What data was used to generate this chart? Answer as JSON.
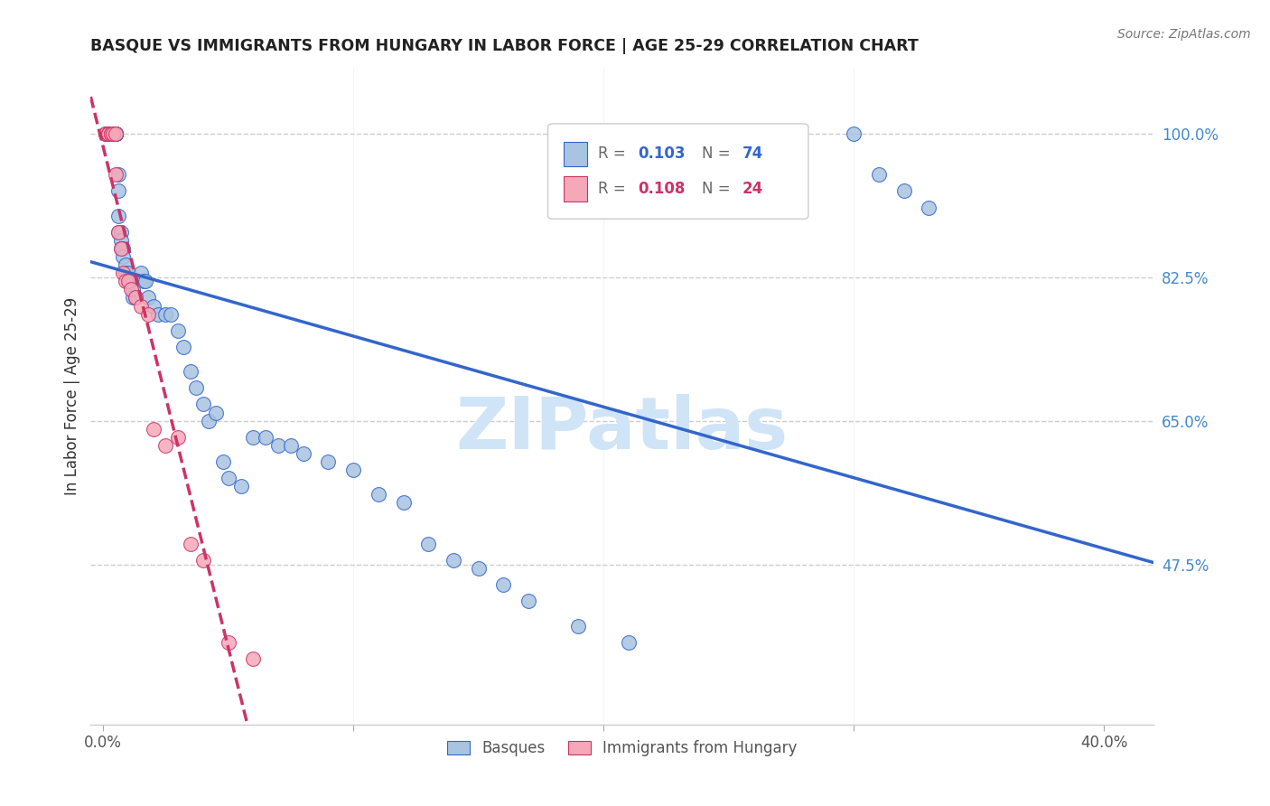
{
  "title": "BASQUE VS IMMIGRANTS FROM HUNGARY IN LABOR FORCE | AGE 25-29 CORRELATION CHART",
  "source": "Source: ZipAtlas.com",
  "ylabel": "In Labor Force | Age 25-29",
  "basque_color": "#a8c4e0",
  "hungary_color": "#f4a8b8",
  "trend_blue": "#3366cc",
  "trend_pink": "#cc3366",
  "axis_color": "#4488cc",
  "grid_color": "#cccccc",
  "background_color": "#ffffff",
  "watermark": "ZIPatlas",
  "watermark_color": "#d0e4f7",
  "basque_x": [
    0.001,
    0.001,
    0.002,
    0.002,
    0.002,
    0.003,
    0.003,
    0.003,
    0.003,
    0.004,
    0.004,
    0.004,
    0.004,
    0.005,
    0.005,
    0.005,
    0.005,
    0.005,
    0.006,
    0.006,
    0.006,
    0.006,
    0.007,
    0.007,
    0.007,
    0.008,
    0.008,
    0.009,
    0.009,
    0.01,
    0.01,
    0.011,
    0.011,
    0.012,
    0.012,
    0.013,
    0.015,
    0.016,
    0.017,
    0.018,
    0.02,
    0.022,
    0.025,
    0.027,
    0.03,
    0.032,
    0.035,
    0.037,
    0.04,
    0.042,
    0.045,
    0.048,
    0.05,
    0.055,
    0.06,
    0.065,
    0.07,
    0.075,
    0.08,
    0.09,
    0.1,
    0.11,
    0.12,
    0.13,
    0.14,
    0.15,
    0.16,
    0.17,
    0.19,
    0.21,
    0.3,
    0.31,
    0.32,
    0.33
  ],
  "basque_y": [
    1.0,
    1.0,
    1.0,
    1.0,
    1.0,
    1.0,
    1.0,
    1.0,
    1.0,
    1.0,
    1.0,
    1.0,
    1.0,
    1.0,
    1.0,
    1.0,
    1.0,
    1.0,
    0.95,
    0.93,
    0.9,
    0.88,
    0.88,
    0.87,
    0.86,
    0.86,
    0.85,
    0.84,
    0.83,
    0.83,
    0.82,
    0.82,
    0.82,
    0.81,
    0.8,
    0.8,
    0.83,
    0.82,
    0.82,
    0.8,
    0.79,
    0.78,
    0.78,
    0.78,
    0.76,
    0.74,
    0.71,
    0.69,
    0.67,
    0.65,
    0.66,
    0.6,
    0.58,
    0.57,
    0.63,
    0.63,
    0.62,
    0.62,
    0.61,
    0.6,
    0.59,
    0.56,
    0.55,
    0.5,
    0.48,
    0.47,
    0.45,
    0.43,
    0.4,
    0.38,
    1.0,
    0.95,
    0.93,
    0.91
  ],
  "hungary_x": [
    0.001,
    0.002,
    0.002,
    0.003,
    0.003,
    0.004,
    0.005,
    0.005,
    0.006,
    0.007,
    0.008,
    0.009,
    0.01,
    0.011,
    0.013,
    0.015,
    0.018,
    0.02,
    0.025,
    0.03,
    0.035,
    0.04,
    0.05,
    0.06
  ],
  "hungary_y": [
    1.0,
    1.0,
    1.0,
    1.0,
    1.0,
    1.0,
    1.0,
    0.95,
    0.88,
    0.86,
    0.83,
    0.82,
    0.82,
    0.81,
    0.8,
    0.79,
    0.78,
    0.64,
    0.62,
    0.63,
    0.5,
    0.48,
    0.38,
    0.36
  ],
  "yticks": [
    0.475,
    0.65,
    0.825,
    1.0
  ],
  "ytick_labels": [
    "47.5%",
    "65.0%",
    "82.5%",
    "100.0%"
  ],
  "xmin": -0.005,
  "xmax": 0.42,
  "ymin": 0.28,
  "ymax": 1.08
}
